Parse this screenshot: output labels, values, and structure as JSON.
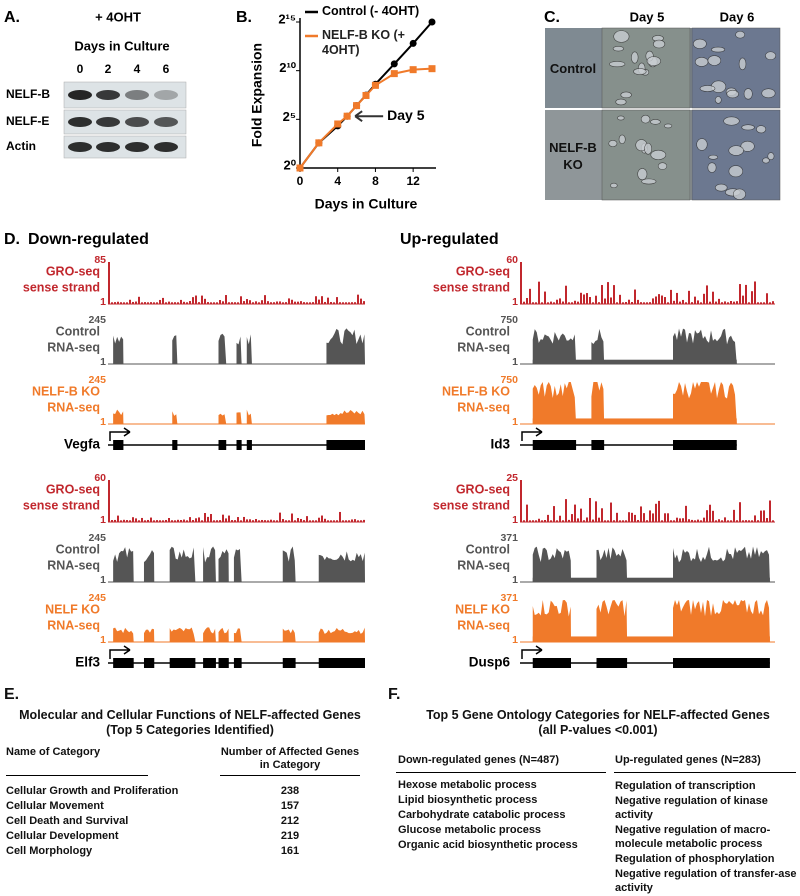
{
  "panel_a": {
    "label": "A.",
    "treatment": "+ 4OHT",
    "xlabel": "Days in Culture",
    "days": [
      "0",
      "2",
      "4",
      "6"
    ],
    "rows": [
      "NELF-B",
      "NELF-E",
      "Actin"
    ]
  },
  "chart_data": {
    "type": "line",
    "panel_label": "B.",
    "x": [
      0,
      2,
      4,
      5,
      6,
      7,
      8,
      10,
      12,
      14
    ],
    "series": [
      {
        "name": "Control (- 4OHT)",
        "color": "#000000",
        "values": [
          1,
          6,
          20,
          40,
          85,
          180,
          390,
          1660,
          7130,
          32768
        ]
      },
      {
        "name": "NELF-B KO (+ 4OHT)",
        "color": "#f07a2a",
        "values": [
          1,
          6,
          23,
          40,
          85,
          175,
          360,
          830,
          1100,
          1180
        ]
      }
    ],
    "xlabel": "Days in Culture",
    "ylabel": "Fold Expansion",
    "xlim": [
      0,
      14
    ],
    "xticks": [
      0,
      4,
      8,
      12
    ],
    "ylim": [
      1,
      32768
    ],
    "log_scale": true,
    "yticks": [
      {
        "value": 1,
        "label": "2⁰"
      },
      {
        "value": 32,
        "label": "2⁵"
      },
      {
        "value": 1024,
        "label": "2¹⁰"
      },
      {
        "value": 32768,
        "label": "2¹⁵"
      }
    ],
    "annotation": "Day 5"
  },
  "panel_c": {
    "label": "C.",
    "columns": [
      "Day 5",
      "Day 6"
    ],
    "rows": [
      "Control",
      "NELF-B KO"
    ]
  },
  "panel_d": {
    "label": "D.",
    "colors": [
      "#c1272d",
      "#555555",
      "#f07a2a"
    ],
    "groups": [
      {
        "title": "Down-regulated",
        "genes": [
          {
            "name": "Vegfa",
            "tracks": [
              {
                "label": [
                  "GRO-seq",
                  "sense strand"
                ],
                "max": 85,
                "min": 1
              },
              {
                "label": [
                  "Control",
                  "RNA-seq"
                ],
                "max": 245,
                "min": 1
              },
              {
                "label": [
                  "NELF-B KO",
                  "RNA-seq"
                ],
                "max": 245,
                "min": 1
              }
            ]
          },
          {
            "name": "Elf3",
            "tracks": [
              {
                "label": [
                  "GRO-seq",
                  "sense strand"
                ],
                "max": 60,
                "min": 1
              },
              {
                "label": [
                  "Control",
                  "RNA-seq"
                ],
                "max": 245,
                "min": 1
              },
              {
                "label": [
                  "NELF KO",
                  "RNA-seq"
                ],
                "max": 245,
                "min": 1
              }
            ]
          }
        ]
      },
      {
        "title": "Up-regulated",
        "genes": [
          {
            "name": "Id3",
            "tracks": [
              {
                "label": [
                  "GRO-seq",
                  "sense strand"
                ],
                "max": 60,
                "min": 1
              },
              {
                "label": [
                  "Control",
                  "RNA-seq"
                ],
                "max": 750,
                "min": 1
              },
              {
                "label": [
                  "NELF-B KO",
                  "RNA-seq"
                ],
                "max": 750,
                "min": 1
              }
            ]
          },
          {
            "name": "Dusp6",
            "tracks": [
              {
                "label": [
                  "GRO-seq",
                  "sense strand"
                ],
                "max": 25,
                "min": 1
              },
              {
                "label": [
                  "Control",
                  "RNA-seq"
                ],
                "max": 371,
                "min": 1
              },
              {
                "label": [
                  "NELF KO",
                  "RNA-seq"
                ],
                "max": 371,
                "min": 1
              }
            ]
          }
        ]
      }
    ]
  },
  "panel_e": {
    "label": "E.",
    "title": [
      "Molecular and Cellular Functions of NELF-affected Genes",
      "(Top 5 Categories Identified)"
    ],
    "columns": [
      "Name of Category",
      "Number of Affected Genes in Category"
    ],
    "rows": [
      [
        "Cellular Growth and Proliferation",
        238
      ],
      [
        "Cellular Movement",
        157
      ],
      [
        "Cell Death and Survival",
        212
      ],
      [
        "Cellular Development",
        219
      ],
      [
        "Cell Morphology",
        161
      ]
    ]
  },
  "panel_f": {
    "label": "F.",
    "title": [
      "Top 5 Gene Ontology Categories for NELF-affected Genes",
      "(all P-values <0.001)"
    ],
    "columns": [
      "Down-regulated genes (N=487)",
      "Up-regulated genes (N=283)"
    ],
    "down": [
      "Hexose metabolic process",
      "Lipid biosynthetic process",
      "Carbohydrate catabolic process",
      "Glucose metabolic process",
      "Organic acid biosynthetic process"
    ],
    "up": [
      "Regulation of transcription",
      "Negative regulation of kinase activity",
      "Negative regulation of macro-molecule metabolic process",
      "Regulation of phosphorylation",
      "Negative regulation of transfer-ase activity"
    ]
  }
}
